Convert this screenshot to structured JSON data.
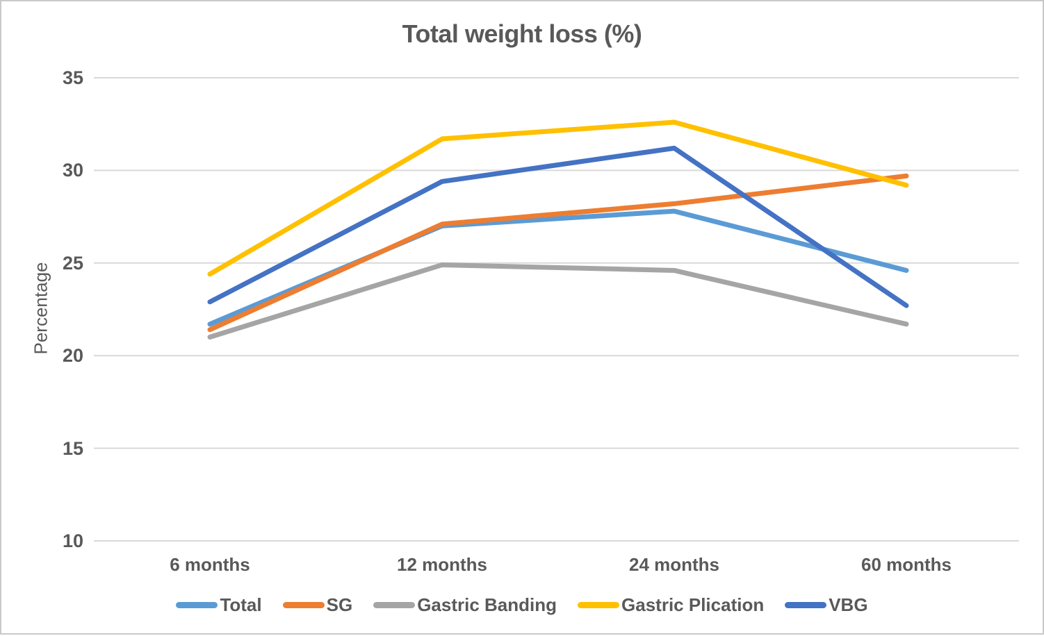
{
  "chart_data": {
    "type": "line",
    "title": "Total weight loss (%)",
    "xlabel": "",
    "ylabel": "Percentage",
    "categories": [
      "6 months",
      "12 months",
      "24 months",
      "60 months"
    ],
    "series": [
      {
        "name": "Total",
        "color": "#5B9BD5",
        "values": [
          21.7,
          27.0,
          27.8,
          24.6
        ]
      },
      {
        "name": "SG",
        "color": "#ED7D31",
        "values": [
          21.4,
          27.1,
          28.2,
          29.7
        ]
      },
      {
        "name": "Gastric Banding",
        "color": "#A5A5A5",
        "values": [
          21.0,
          24.9,
          24.6,
          21.7
        ]
      },
      {
        "name": "Gastric Plication",
        "color": "#FFC000",
        "values": [
          24.4,
          31.7,
          32.6,
          29.2
        ]
      },
      {
        "name": "VBG",
        "color": "#4472C4",
        "values": [
          22.9,
          29.4,
          31.2,
          22.7
        ]
      }
    ],
    "ylim": [
      10,
      35
    ],
    "yticks": [
      10,
      15,
      20,
      25,
      30,
      35
    ],
    "grid": true,
    "legend_position": "bottom",
    "colors": {
      "text": "#595959",
      "gridline": "#D9D9D9",
      "figure_border": "#C9C9C9",
      "background": "#FFFFFF"
    }
  }
}
